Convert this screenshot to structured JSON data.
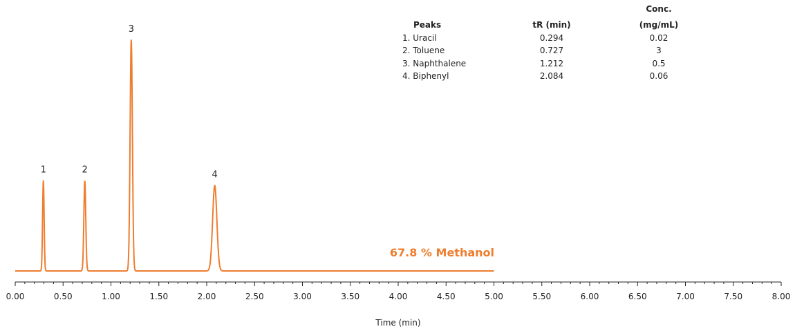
{
  "chart_data": {
    "type": "line",
    "xlabel": "Time (min)",
    "ylabel": "",
    "xlim": [
      0,
      8
    ],
    "x_ticks": [
      "0.00",
      "0.50",
      "1.00",
      "1.50",
      "2.00",
      "2.50",
      "3.00",
      "3.50",
      "4.00",
      "4.50",
      "5.00",
      "5.50",
      "6.00",
      "6.50",
      "7.00",
      "7.50",
      "8.00"
    ],
    "grid": false,
    "line_color": "#ee7d2f",
    "annotation": "67.8 % Methanol",
    "trace_end_min": 5.0,
    "baseline_pct": 0,
    "peaks": [
      {
        "label": "1",
        "rt": 0.294,
        "height_pct": 39,
        "width": 0.008
      },
      {
        "label": "2",
        "rt": 0.727,
        "height_pct": 39,
        "width": 0.01
      },
      {
        "label": "3",
        "rt": 1.212,
        "height_pct": 100,
        "width": 0.012
      },
      {
        "label": "4",
        "rt": 2.084,
        "height_pct": 37,
        "width": 0.022
      }
    ],
    "peak_table": {
      "headers": {
        "name": "Peaks",
        "tr": "tR (min)",
        "conc_line1": "Conc.",
        "conc_line2": "(mg/mL)"
      },
      "rows": [
        {
          "name": "1. Uracil",
          "tr": "0.294",
          "conc": "0.02"
        },
        {
          "name": "2. Toluene",
          "tr": "0.727",
          "conc": "3"
        },
        {
          "name": "3. Naphthalene",
          "tr": "1.212",
          "conc": "0.5"
        },
        {
          "name": "4. Biphenyl",
          "tr": "2.084",
          "conc": "0.06"
        }
      ]
    }
  }
}
